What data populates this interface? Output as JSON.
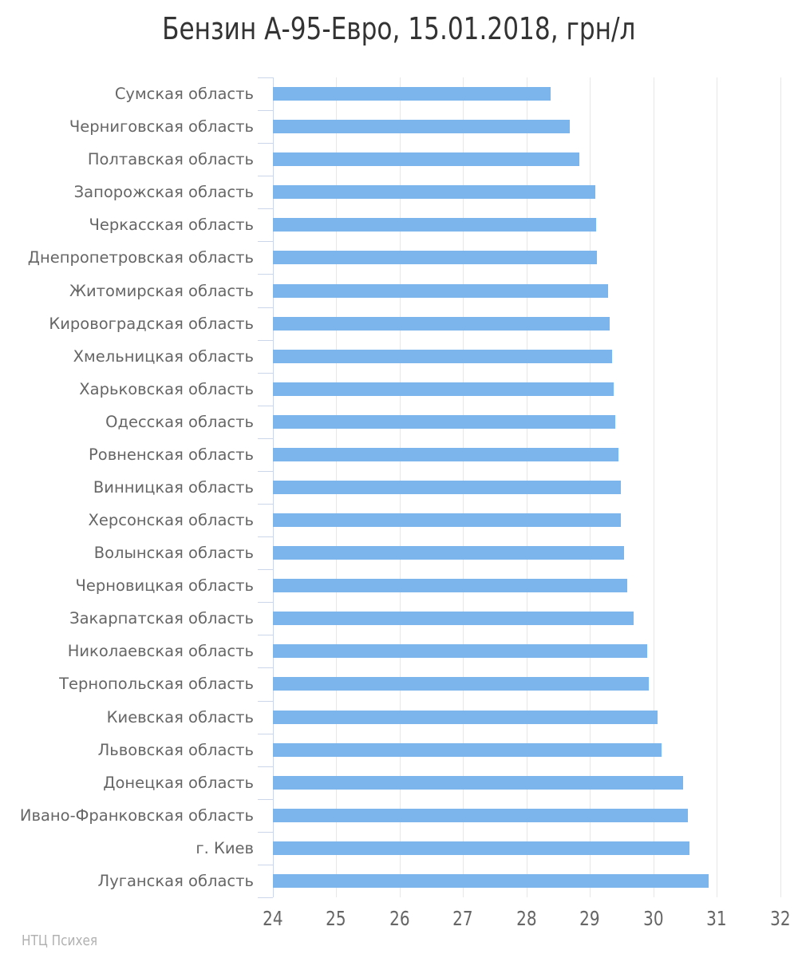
{
  "header": {
    "title": "Бензин А-95-Евро, 15.01.2018, грн/л"
  },
  "credit": "НТЦ Психея",
  "chart_data": {
    "type": "bar",
    "orientation": "horizontal",
    "title": "Бензин А-95-Евро, 15.01.2018, грн/л",
    "xlabel": "",
    "ylabel": "",
    "xlim": [
      24,
      32
    ],
    "x_ticks": [
      24,
      25,
      26,
      27,
      28,
      29,
      30,
      31,
      32
    ],
    "grid": true,
    "legend": false,
    "bar_color": "#7cb5ec",
    "grid_color": "#e7e7e7",
    "axis_color": "#ccd6eb",
    "categories": [
      "Сумская область",
      "Черниговская область",
      "Полтавская область",
      "Запорожская область",
      "Черкасская область",
      "Днепропетровская область",
      "Житомирская область",
      "Кировоградская область",
      "Хмельницкая область",
      "Харьковская область",
      "Одесская область",
      "Ровненская область",
      "Винницкая область",
      "Херсонская область",
      "Волынская область",
      "Черновицкая область",
      "Закарпатская область",
      "Николаевская область",
      "Тернопольская область",
      "Киевская область",
      "Львовская область",
      "Донецкая область",
      "Ивано-Франковская область",
      "г. Киев",
      "Луганская область"
    ],
    "values": [
      28.38,
      28.68,
      28.83,
      29.08,
      29.09,
      29.11,
      29.28,
      29.31,
      29.34,
      29.37,
      29.39,
      29.45,
      29.48,
      29.49,
      29.54,
      29.58,
      29.68,
      29.9,
      29.93,
      30.06,
      30.13,
      30.46,
      30.54,
      30.56,
      30.87
    ]
  }
}
